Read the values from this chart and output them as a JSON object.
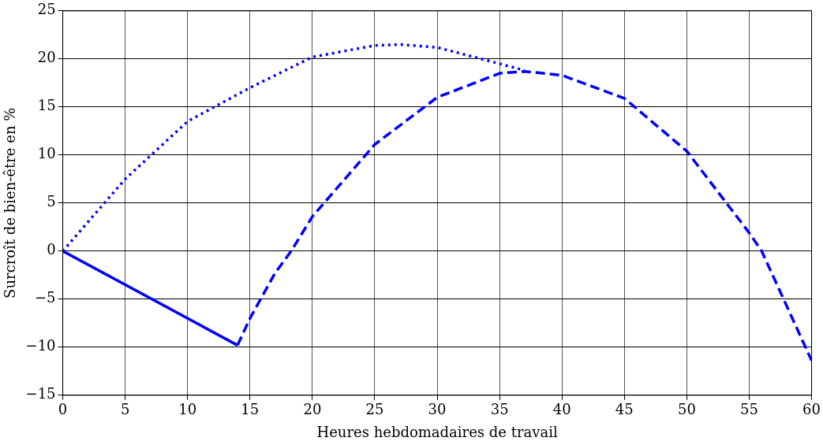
{
  "chart_data": {
    "type": "line",
    "xlabel": "Heures hebdomadaires de travail",
    "ylabel": "Surcroît de bien-être en %",
    "xlim": [
      0,
      60
    ],
    "xticks": [
      0,
      5,
      10,
      15,
      20,
      25,
      30,
      35,
      40,
      45,
      50,
      55,
      60
    ],
    "ylim": [
      -15,
      25
    ],
    "yticks": [
      {
        "value": -15,
        "label": "−15"
      },
      {
        "value": -10,
        "label": "−10"
      },
      {
        "value": -5,
        "label": "−5"
      },
      0,
      5,
      10,
      15,
      20,
      25
    ],
    "grid": true,
    "legend": false,
    "marker": "none",
    "series": [
      {
        "color": "#0000ff",
        "line_style": "solid",
        "x": [
          0,
          14
        ],
        "values": [
          0,
          -9.8
        ]
      },
      {
        "color": "#0000ff",
        "line_style": "dashed",
        "x": [
          14,
          15,
          17,
          18.3,
          20,
          25,
          30,
          35,
          37,
          40,
          45,
          50,
          55,
          56,
          60
        ],
        "values": [
          -9.8,
          -7,
          -2.3,
          0,
          3.6,
          11.1,
          16,
          18.5,
          18.7,
          18.3,
          15.9,
          10.4,
          1.9,
          0,
          -11.4
        ]
      },
      {
        "color": "#0000ff",
        "line_style": "dotted",
        "x": [
          0,
          5,
          10,
          15,
          20,
          25,
          27,
          30,
          35,
          37
        ],
        "values": [
          0,
          7.5,
          13.5,
          17,
          20.2,
          21.4,
          21.5,
          21.2,
          19.5,
          18.8
        ]
      }
    ]
  }
}
